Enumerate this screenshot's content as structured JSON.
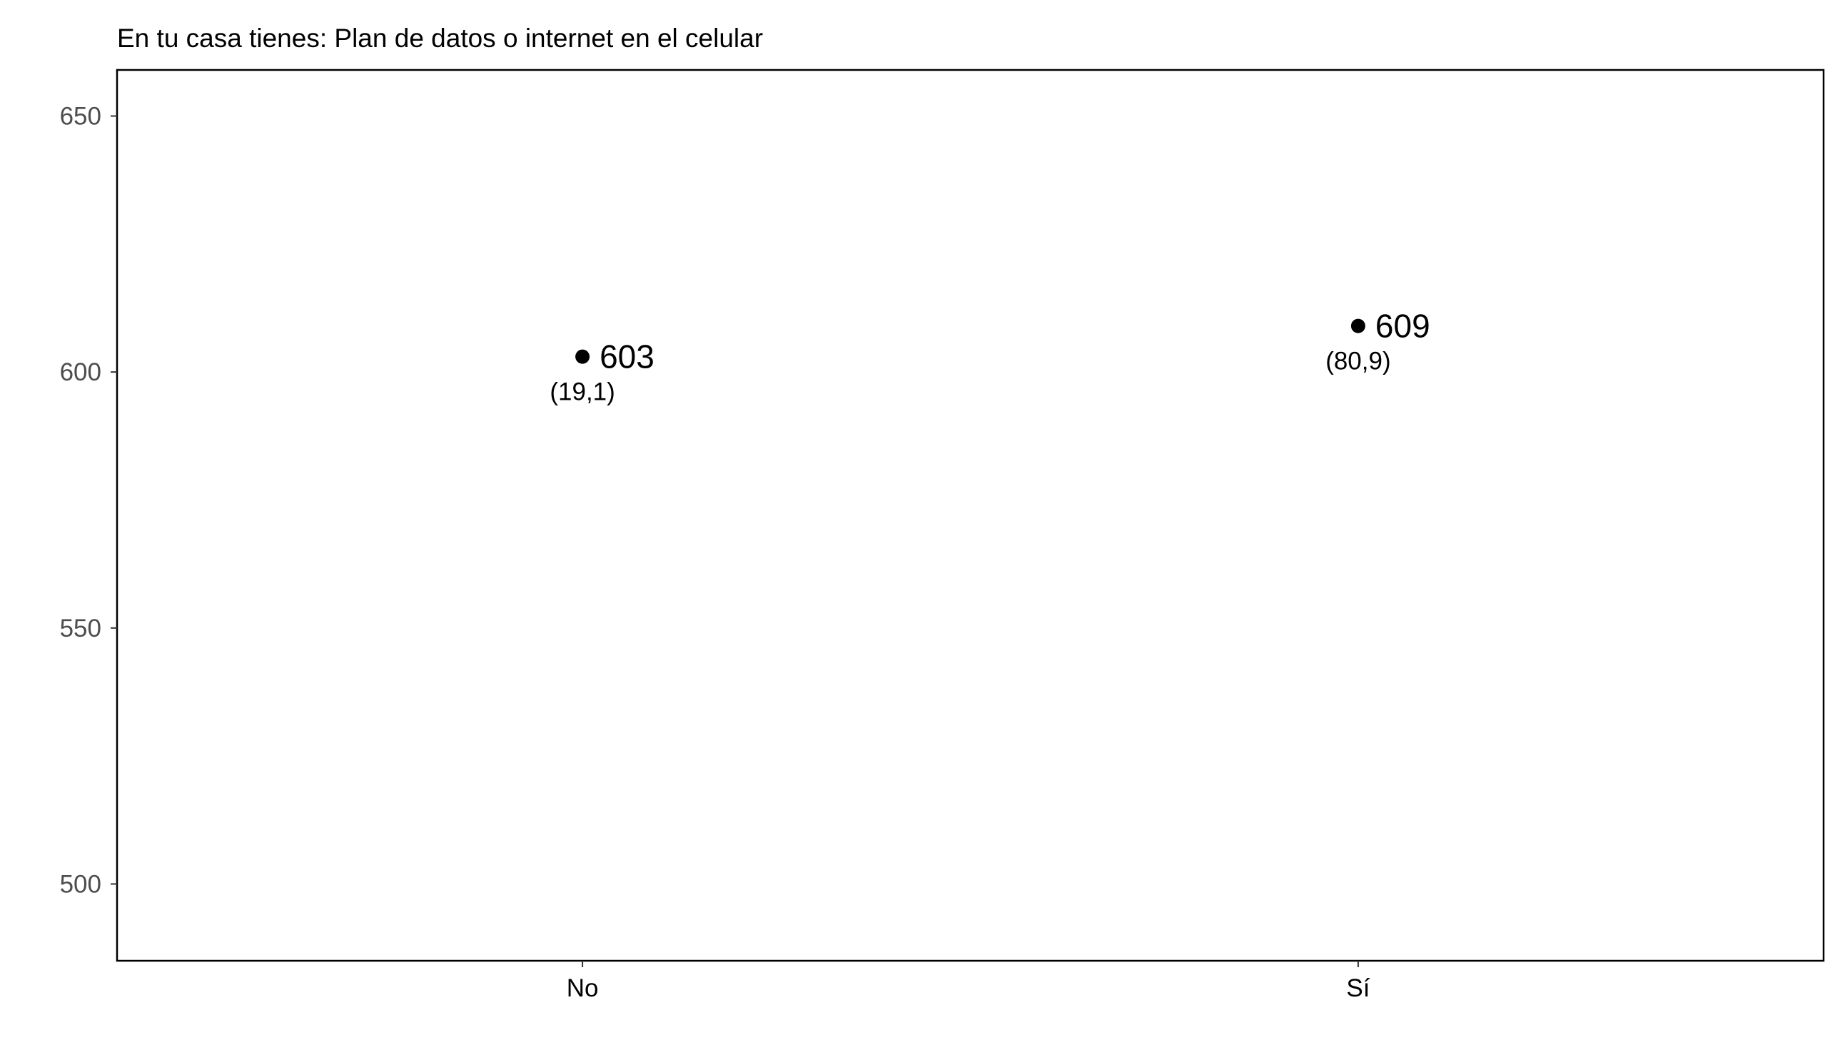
{
  "chart_data": {
    "type": "scatter",
    "title": "En tu casa tienes: Plan de datos o internet en el celular",
    "xlabel": "",
    "ylabel": "",
    "categories": [
      "No",
      "Sí"
    ],
    "values": [
      603,
      609
    ],
    "value_labels": [
      "603",
      "609"
    ],
    "percent_labels": [
      "(19,1)",
      "(80,9)"
    ],
    "ylim": [
      485,
      659
    ],
    "yticks": [
      500,
      550,
      600,
      650
    ],
    "ytick_labels": [
      "500",
      "550",
      "600",
      "650"
    ],
    "grid": false,
    "legend": "none",
    "colors": {
      "point": "#000000",
      "frame": "#000000",
      "tick_text": "#4d4d4d",
      "background": "#ffffff"
    }
  }
}
